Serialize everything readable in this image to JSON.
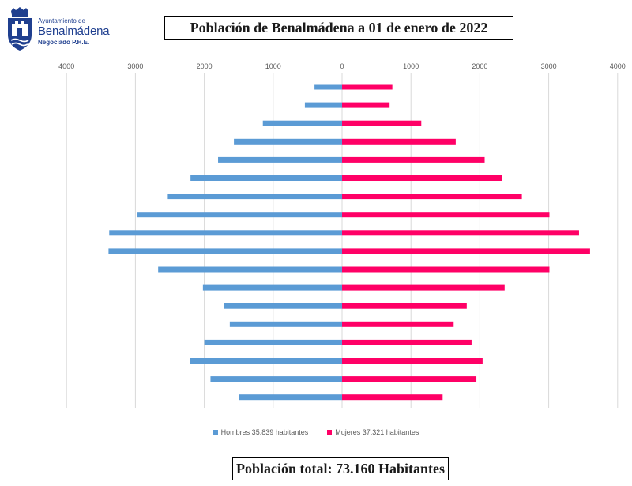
{
  "logo": {
    "line1": "Ayuntamiento de",
    "line2": "Benalmádena",
    "line3": "Negociado P.H.E."
  },
  "chart_data": {
    "type": "bar",
    "orientation": "horizontal",
    "title": "Población de Benalmádena a 01 de enero de 2022",
    "x_ticks": [
      "4000",
      "3000",
      "2000",
      "1000",
      "0",
      "1000",
      "2000",
      "3000",
      "4000"
    ],
    "xlim": [
      -4000,
      4000
    ],
    "grid": true,
    "legend_position": "bottom",
    "colors": {
      "men": "#5b9bd5",
      "women": "#ff0066",
      "grid": "#d9d9d9"
    },
    "series": [
      {
        "name": "Hombres 35.839 habitantes",
        "values": [
          400,
          540,
          1150,
          1570,
          1800,
          2200,
          2530,
          2970,
          3380,
          3390,
          2670,
          2020,
          1720,
          1630,
          2000,
          2210,
          1910,
          1500
        ]
      },
      {
        "name": "Mujeres 37.321 habitantes",
        "values": [
          730,
          690,
          1150,
          1650,
          2070,
          2320,
          2610,
          3010,
          3440,
          3600,
          3010,
          2360,
          1810,
          1620,
          1880,
          2040,
          1950,
          1460
        ]
      }
    ]
  },
  "footer": {
    "total": "Población total: 73.160 Habitantes"
  }
}
